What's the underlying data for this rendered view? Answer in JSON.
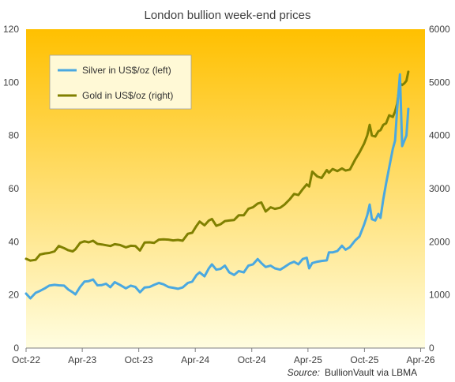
{
  "chart_data": {
    "type": "line",
    "title": "London bullion week-end prices",
    "source_prefix": "Source:",
    "source_text": "BullionVault via LBMA",
    "x_ticks": [
      "Oct-22",
      "Apr-23",
      "Oct-23",
      "Apr-24",
      "Oct-24",
      "Apr-25",
      "Oct-25",
      "Apr-26"
    ],
    "x_range": [
      "2022-10-01",
      "2026-04-15"
    ],
    "y_left": {
      "ylim": [
        0,
        120
      ],
      "ticks": [
        "0",
        "20",
        "40",
        "60",
        "80",
        "100",
        "120"
      ]
    },
    "y_right": {
      "ylim": [
        0,
        6000
      ],
      "ticks": [
        "0",
        "1000",
        "2000",
        "3000",
        "4000",
        "5000",
        "6000"
      ]
    },
    "grid": false,
    "legend_position": "top-left",
    "colors": {
      "silver": "#4aa8e0",
      "gold": "#808000",
      "bg_top": "#ffc000",
      "bg_bottom": "#fffde0"
    },
    "series": [
      {
        "name": "Silver in US$/oz (left)",
        "axis": "left",
        "points": [
          [
            "2022-10-01",
            20.5
          ],
          [
            "2022-10-15",
            18.7
          ],
          [
            "2022-11-01",
            20.8
          ],
          [
            "2022-11-15",
            21.5
          ],
          [
            "2022-12-01",
            22.5
          ],
          [
            "2022-12-15",
            23.5
          ],
          [
            "2023-01-01",
            23.8
          ],
          [
            "2023-01-15",
            23.6
          ],
          [
            "2023-02-01",
            23.5
          ],
          [
            "2023-02-15",
            22.0
          ],
          [
            "2023-03-01",
            21.0
          ],
          [
            "2023-03-10",
            20.2
          ],
          [
            "2023-03-25",
            23.0
          ],
          [
            "2023-04-08",
            25.0
          ],
          [
            "2023-04-22",
            25.2
          ],
          [
            "2023-05-06",
            25.8
          ],
          [
            "2023-05-20",
            23.6
          ],
          [
            "2023-06-03",
            23.7
          ],
          [
            "2023-06-17",
            24.2
          ],
          [
            "2023-07-01",
            22.9
          ],
          [
            "2023-07-15",
            24.8
          ],
          [
            "2023-08-01",
            23.8
          ],
          [
            "2023-08-20",
            22.5
          ],
          [
            "2023-09-05",
            23.5
          ],
          [
            "2023-09-20",
            23.0
          ],
          [
            "2023-10-05",
            21.0
          ],
          [
            "2023-10-20",
            22.8
          ],
          [
            "2023-11-05",
            23.0
          ],
          [
            "2023-11-20",
            23.8
          ],
          [
            "2023-12-05",
            24.5
          ],
          [
            "2023-12-20",
            24.0
          ],
          [
            "2024-01-05",
            23.0
          ],
          [
            "2024-01-20",
            22.7
          ],
          [
            "2024-02-05",
            22.3
          ],
          [
            "2024-02-20",
            22.8
          ],
          [
            "2024-03-08",
            24.5
          ],
          [
            "2024-03-22",
            25.0
          ],
          [
            "2024-04-05",
            27.5
          ],
          [
            "2024-04-15",
            28.5
          ],
          [
            "2024-05-01",
            27.0
          ],
          [
            "2024-05-15",
            30.0
          ],
          [
            "2024-05-25",
            31.5
          ],
          [
            "2024-06-08",
            29.5
          ],
          [
            "2024-06-22",
            29.8
          ],
          [
            "2024-07-06",
            31.0
          ],
          [
            "2024-07-20",
            28.5
          ],
          [
            "2024-08-05",
            27.5
          ],
          [
            "2024-08-20",
            29.0
          ],
          [
            "2024-09-05",
            28.5
          ],
          [
            "2024-09-20",
            31.0
          ],
          [
            "2024-10-05",
            31.5
          ],
          [
            "2024-10-20",
            33.5
          ],
          [
            "2024-11-01",
            32.0
          ],
          [
            "2024-11-15",
            30.5
          ],
          [
            "2024-12-01",
            31.0
          ],
          [
            "2024-12-15",
            30.0
          ],
          [
            "2025-01-01",
            29.5
          ],
          [
            "2025-01-15",
            30.5
          ],
          [
            "2025-02-01",
            31.8
          ],
          [
            "2025-02-15",
            32.5
          ],
          [
            "2025-03-01",
            31.5
          ],
          [
            "2025-03-15",
            33.5
          ],
          [
            "2025-03-28",
            34.0
          ],
          [
            "2025-04-05",
            30.0
          ],
          [
            "2025-04-15",
            32.0
          ],
          [
            "2025-05-01",
            32.5
          ],
          [
            "2025-05-15",
            32.8
          ],
          [
            "2025-06-01",
            33.0
          ],
          [
            "2025-06-08",
            36.0
          ],
          [
            "2025-06-20",
            36.0
          ],
          [
            "2025-07-05",
            36.5
          ],
          [
            "2025-07-20",
            38.5
          ],
          [
            "2025-08-01",
            37.0
          ],
          [
            "2025-08-15",
            38.0
          ],
          [
            "2025-09-01",
            40.5
          ],
          [
            "2025-09-15",
            42.0
          ],
          [
            "2025-09-30",
            46.5
          ],
          [
            "2025-10-10",
            50.0
          ],
          [
            "2025-10-18",
            54.0
          ],
          [
            "2025-10-25",
            48.5
          ],
          [
            "2025-11-05",
            48.0
          ],
          [
            "2025-11-15",
            50.5
          ],
          [
            "2025-11-22",
            49.0
          ],
          [
            "2025-12-01",
            56.0
          ],
          [
            "2025-12-10",
            62.0
          ],
          [
            "2025-12-20",
            68.0
          ],
          [
            "2026-01-01",
            75.0
          ],
          [
            "2026-01-08",
            78.0
          ],
          [
            "2026-01-15",
            90.0
          ],
          [
            "2026-01-24",
            103.0
          ],
          [
            "2026-01-31",
            76.0
          ],
          [
            "2026-02-07",
            78.0
          ],
          [
            "2026-02-14",
            80.0
          ],
          [
            "2026-02-20",
            90.0
          ]
        ]
      },
      {
        "name": "Gold in US$/oz (right)",
        "axis": "right",
        "points": [
          [
            "2022-10-01",
            1680
          ],
          [
            "2022-10-15",
            1645
          ],
          [
            "2022-11-01",
            1660
          ],
          [
            "2022-11-15",
            1760
          ],
          [
            "2022-12-01",
            1780
          ],
          [
            "2022-12-15",
            1790
          ],
          [
            "2023-01-01",
            1820
          ],
          [
            "2023-01-15",
            1920
          ],
          [
            "2023-02-01",
            1880
          ],
          [
            "2023-02-15",
            1840
          ],
          [
            "2023-03-01",
            1820
          ],
          [
            "2023-03-10",
            1860
          ],
          [
            "2023-03-25",
            1980
          ],
          [
            "2023-04-08",
            2010
          ],
          [
            "2023-04-22",
            1990
          ],
          [
            "2023-05-06",
            2020
          ],
          [
            "2023-05-20",
            1960
          ],
          [
            "2023-06-03",
            1950
          ],
          [
            "2023-06-17",
            1935
          ],
          [
            "2023-07-01",
            1920
          ],
          [
            "2023-07-15",
            1955
          ],
          [
            "2023-08-01",
            1940
          ],
          [
            "2023-08-20",
            1895
          ],
          [
            "2023-09-05",
            1925
          ],
          [
            "2023-09-20",
            1920
          ],
          [
            "2023-10-05",
            1835
          ],
          [
            "2023-10-20",
            1985
          ],
          [
            "2023-11-05",
            1990
          ],
          [
            "2023-11-20",
            1980
          ],
          [
            "2023-12-05",
            2040
          ],
          [
            "2023-12-20",
            2045
          ],
          [
            "2024-01-05",
            2040
          ],
          [
            "2024-01-20",
            2025
          ],
          [
            "2024-02-05",
            2035
          ],
          [
            "2024-02-20",
            2020
          ],
          [
            "2024-03-08",
            2150
          ],
          [
            "2024-03-22",
            2170
          ],
          [
            "2024-04-05",
            2300
          ],
          [
            "2024-04-15",
            2380
          ],
          [
            "2024-05-01",
            2310
          ],
          [
            "2024-05-15",
            2400
          ],
          [
            "2024-05-25",
            2430
          ],
          [
            "2024-06-08",
            2300
          ],
          [
            "2024-06-22",
            2330
          ],
          [
            "2024-07-06",
            2390
          ],
          [
            "2024-07-20",
            2400
          ],
          [
            "2024-08-05",
            2410
          ],
          [
            "2024-08-20",
            2500
          ],
          [
            "2024-09-05",
            2500
          ],
          [
            "2024-09-20",
            2620
          ],
          [
            "2024-10-05",
            2650
          ],
          [
            "2024-10-20",
            2720
          ],
          [
            "2024-11-01",
            2740
          ],
          [
            "2024-11-15",
            2570
          ],
          [
            "2024-12-01",
            2650
          ],
          [
            "2024-12-15",
            2620
          ],
          [
            "2025-01-01",
            2640
          ],
          [
            "2025-01-15",
            2700
          ],
          [
            "2025-02-01",
            2800
          ],
          [
            "2025-02-15",
            2900
          ],
          [
            "2025-03-01",
            2880
          ],
          [
            "2025-03-15",
            2990
          ],
          [
            "2025-03-28",
            3080
          ],
          [
            "2025-04-05",
            3040
          ],
          [
            "2025-04-15",
            3320
          ],
          [
            "2025-05-01",
            3230
          ],
          [
            "2025-05-15",
            3200
          ],
          [
            "2025-06-01",
            3350
          ],
          [
            "2025-06-08",
            3300
          ],
          [
            "2025-06-20",
            3370
          ],
          [
            "2025-07-05",
            3330
          ],
          [
            "2025-07-20",
            3380
          ],
          [
            "2025-08-01",
            3340
          ],
          [
            "2025-08-15",
            3360
          ],
          [
            "2025-09-01",
            3550
          ],
          [
            "2025-09-15",
            3680
          ],
          [
            "2025-09-30",
            3850
          ],
          [
            "2025-10-10",
            4000
          ],
          [
            "2025-10-18",
            4200
          ],
          [
            "2025-10-25",
            4000
          ],
          [
            "2025-11-05",
            3980
          ],
          [
            "2025-11-15",
            4080
          ],
          [
            "2025-11-22",
            4100
          ],
          [
            "2025-12-01",
            4200
          ],
          [
            "2025-12-10",
            4230
          ],
          [
            "2025-12-20",
            4380
          ],
          [
            "2026-01-01",
            4350
          ],
          [
            "2026-01-08",
            4450
          ],
          [
            "2026-01-15",
            4600
          ],
          [
            "2026-01-24",
            4980
          ],
          [
            "2026-01-31",
            4950
          ],
          [
            "2026-02-07",
            4980
          ],
          [
            "2026-02-14",
            5030
          ],
          [
            "2026-02-20",
            5200
          ]
        ]
      }
    ]
  }
}
